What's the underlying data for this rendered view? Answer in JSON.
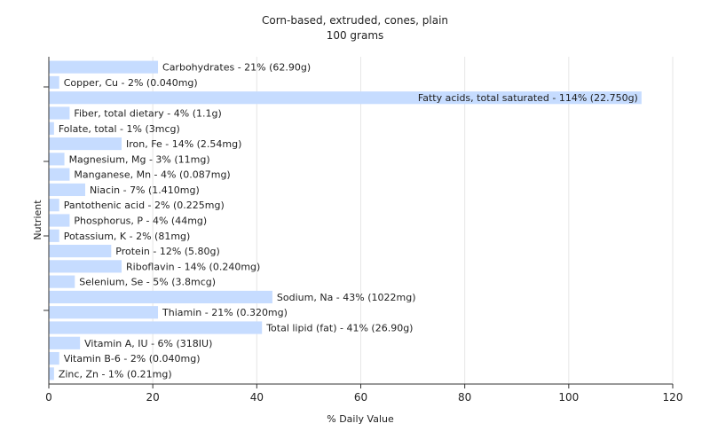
{
  "chart_data": {
    "type": "bar",
    "orientation": "horizontal",
    "title": "Corn-based, extruded, cones, plain",
    "subtitle": "100 grams",
    "xlabel": "% Daily Value",
    "ylabel": "Nutrient",
    "xlim": [
      0,
      120
    ],
    "xticks": [
      0,
      20,
      40,
      60,
      80,
      100,
      120
    ],
    "grid": true,
    "bar_color": "#c6dcff",
    "categories": [
      "Carbohydrates",
      "Copper, Cu",
      "Fatty acids, total saturated",
      "Fiber, total dietary",
      "Folate, total",
      "Iron, Fe",
      "Magnesium, Mg",
      "Manganese, Mn",
      "Niacin",
      "Pantothenic acid",
      "Phosphorus, P",
      "Potassium, K",
      "Protein",
      "Riboflavin",
      "Selenium, Se",
      "Sodium, Na",
      "Thiamin",
      "Total lipid (fat)",
      "Vitamin A, IU",
      "Vitamin B-6",
      "Zinc, Zn"
    ],
    "values": [
      21,
      2,
      114,
      4,
      1,
      14,
      3,
      4,
      7,
      2,
      4,
      2,
      12,
      14,
      5,
      43,
      21,
      41,
      6,
      2,
      1
    ],
    "labels": [
      "Carbohydrates - 21% (62.90g)",
      "Copper, Cu - 2% (0.040mg)",
      "Fatty acids, total saturated - 114% (22.750g)",
      "Fiber, total dietary - 4% (1.1g)",
      "Folate, total - 1% (3mcg)",
      "Iron, Fe - 14% (2.54mg)",
      "Magnesium, Mg - 3% (11mg)",
      "Manganese, Mn - 4% (0.087mg)",
      "Niacin - 7% (1.410mg)",
      "Pantothenic acid - 2% (0.225mg)",
      "Phosphorus, P - 4% (44mg)",
      "Potassium, K - 2% (81mg)",
      "Protein - 12% (5.80g)",
      "Riboflavin - 14% (0.240mg)",
      "Selenium, Se - 5% (3.8mcg)",
      "Sodium, Na - 43% (1022mg)",
      "Thiamin - 21% (0.320mg)",
      "Total lipid (fat) - 41% (26.90g)",
      "Vitamin A, IU - 6% (318IU)",
      "Vitamin B-6 - 2% (0.040mg)",
      "Zinc, Zn - 1% (0.21mg)"
    ]
  }
}
